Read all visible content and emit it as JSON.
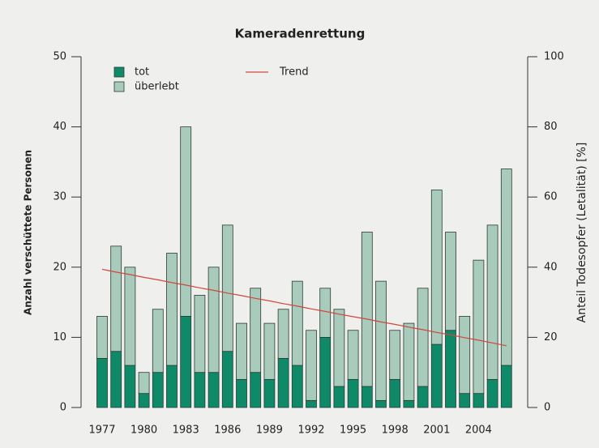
{
  "chart_data": {
    "type": "bar",
    "stacked": true,
    "title": "Kameradenrettung",
    "y_label": "Anzahl verschüttete Personen",
    "y2_label": "Anteil Todesopfer (Letalität) [%]",
    "categories": [
      "1977",
      null,
      null,
      "1980",
      null,
      null,
      "1983",
      null,
      null,
      "1986",
      null,
      null,
      "1989",
      null,
      null,
      "1992",
      null,
      null,
      "1995",
      null,
      null,
      "1998",
      null,
      null,
      "2001",
      null,
      null,
      "2004",
      null,
      null
    ],
    "series": [
      {
        "name": "tot",
        "color": "#0e8a68",
        "values": [
          7,
          8,
          6,
          2,
          5,
          6,
          13,
          5,
          5,
          8,
          4,
          5,
          4,
          7,
          6,
          1,
          10,
          3,
          4,
          3,
          1,
          4,
          1,
          3,
          9,
          11,
          2,
          2,
          4,
          6
        ]
      },
      {
        "name": "überlebt",
        "color": "#a9cbbb",
        "values": [
          6,
          15,
          14,
          3,
          9,
          16,
          27,
          11,
          15,
          18,
          8,
          12,
          8,
          7,
          12,
          10,
          7,
          11,
          7,
          22,
          17,
          7,
          11,
          14,
          22,
          14,
          11,
          19,
          22,
          28
        ]
      },
      {
        "name": "Trend",
        "color": "#d0473a",
        "axis": "y2",
        "values": [
          39.4,
          38.6,
          37.9,
          37.1,
          36.4,
          35.6,
          34.9,
          34.1,
          33.4,
          32.6,
          31.9,
          31.1,
          30.4,
          29.6,
          28.9,
          28.1,
          27.4,
          26.6,
          25.9,
          25.2,
          24.4,
          23.7,
          22.9,
          22.2,
          21.4,
          20.7,
          19.9,
          19.2,
          18.4,
          17.6
        ]
      }
    ],
    "ylim": [
      0,
      50
    ],
    "yticks": [
      0,
      10,
      20,
      30,
      40,
      50
    ],
    "y2lim": [
      0,
      100
    ],
    "y2ticks": [
      0,
      20,
      40,
      60,
      80,
      100
    ],
    "legend": "top-left"
  }
}
